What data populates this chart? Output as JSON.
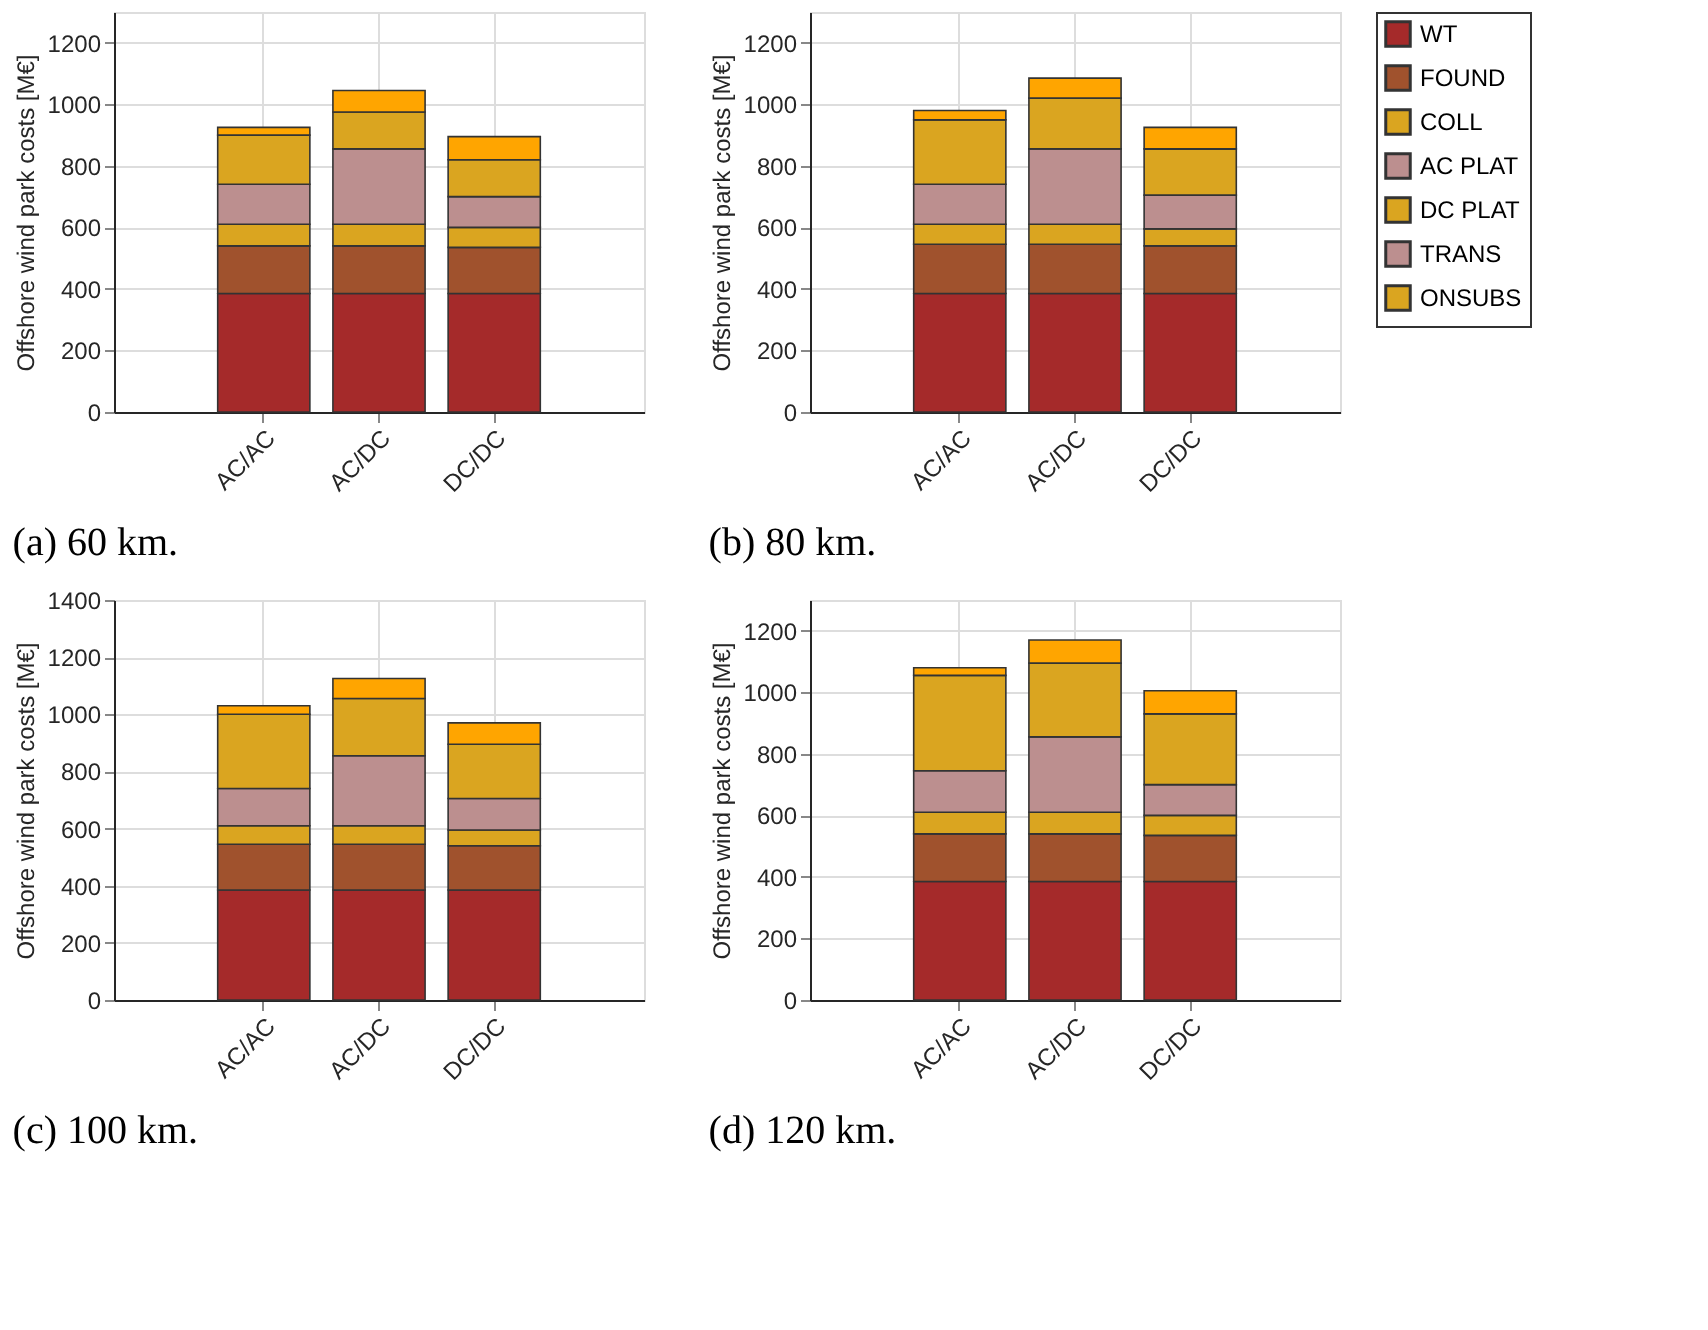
{
  "chart_data": [
    {
      "type": "bar",
      "stacked": true,
      "annotations": [
        "(a) 60 km."
      ],
      "ylabel": "Offshore wind park costs [M€]",
      "categories": [
        "AC/AC",
        "AC/DC",
        "DC/DC"
      ],
      "ylim": [
        0,
        1300
      ],
      "yticks": [
        0,
        200,
        400,
        600,
        800,
        1000,
        1200
      ],
      "grid": true,
      "series": [
        {
          "color": "#a52a2a",
          "values": [
            385,
            385,
            385
          ]
        },
        {
          "color": "#a0522d",
          "values": [
            155,
            155,
            150
          ]
        },
        {
          "color": "#daa520",
          "values": [
            70,
            70,
            65
          ]
        },
        {
          "color": "#bc8f8f",
          "values": [
            130,
            245,
            100
          ]
        },
        {
          "color": "#daa520",
          "values": [
            160,
            120,
            120
          ]
        },
        {
          "color": "#ffa500",
          "values": [
            25,
            70,
            75
          ]
        }
      ]
    },
    {
      "type": "bar",
      "stacked": true,
      "annotations": [
        "(b) 80 km."
      ],
      "ylabel": "Offshore wind park costs [M€]",
      "categories": [
        "AC/AC",
        "AC/DC",
        "DC/DC"
      ],
      "ylim": [
        0,
        1300
      ],
      "yticks": [
        0,
        200,
        400,
        600,
        800,
        1000,
        1200
      ],
      "grid": true,
      "legend": "right",
      "series": [
        {
          "name": "WT",
          "color": "#a52a2a",
          "values": [
            385,
            385,
            385
          ]
        },
        {
          "name": "FOUND",
          "color": "#a0522d",
          "values": [
            160,
            160,
            155
          ]
        },
        {
          "name": "COLL",
          "color": "#daa520",
          "values": [
            65,
            65,
            55
          ]
        },
        {
          "name": "AC PLAT",
          "color": "#bc8f8f",
          "values": [
            130,
            245,
            110
          ]
        },
        {
          "name": "DC PLAT",
          "color": "#daa520",
          "values": [
            210,
            165,
            150
          ]
        },
        {
          "name": "TRANS",
          "color": "#bc8f8f",
          "values": [
            0,
            0,
            0
          ]
        },
        {
          "name": "ONSUBS",
          "color": "#daa520",
          "values": [
            0,
            0,
            0
          ]
        },
        {
          "color": "#ffa500",
          "values": [
            30,
            65,
            70
          ]
        }
      ]
    },
    {
      "type": "bar",
      "stacked": true,
      "annotations": [
        "(c) 100 km."
      ],
      "ylabel": "Offshore wind park costs [M€]",
      "categories": [
        "AC/AC",
        "AC/DC",
        "DC/DC"
      ],
      "ylim": [
        0,
        1400
      ],
      "yticks": [
        0,
        200,
        400,
        600,
        800,
        1000,
        1200,
        1400
      ],
      "grid": true,
      "series": [
        {
          "color": "#a52a2a",
          "values": [
            385,
            385,
            385
          ]
        },
        {
          "color": "#a0522d",
          "values": [
            160,
            160,
            155
          ]
        },
        {
          "color": "#daa520",
          "values": [
            65,
            65,
            55
          ]
        },
        {
          "color": "#bc8f8f",
          "values": [
            130,
            245,
            110
          ]
        },
        {
          "color": "#daa520",
          "values": [
            260,
            200,
            190
          ]
        },
        {
          "color": "#ffa500",
          "values": [
            30,
            70,
            75
          ]
        }
      ]
    },
    {
      "type": "bar",
      "stacked": true,
      "annotations": [
        "(d) 120 km."
      ],
      "ylabel": "Offshore wind park costs [M€]",
      "categories": [
        "AC/AC",
        "AC/DC",
        "DC/DC"
      ],
      "ylim": [
        0,
        1300
      ],
      "yticks": [
        0,
        200,
        400,
        600,
        800,
        1000,
        1200
      ],
      "grid": true,
      "series": [
        {
          "color": "#a52a2a",
          "values": [
            385,
            385,
            385
          ]
        },
        {
          "color": "#a0522d",
          "values": [
            155,
            155,
            150
          ]
        },
        {
          "color": "#daa520",
          "values": [
            70,
            70,
            65
          ]
        },
        {
          "color": "#bc8f8f",
          "values": [
            135,
            245,
            100
          ]
        },
        {
          "color": "#daa520",
          "values": [
            310,
            240,
            230
          ]
        },
        {
          "color": "#ffa500",
          "values": [
            25,
            75,
            75
          ]
        }
      ]
    }
  ]
}
